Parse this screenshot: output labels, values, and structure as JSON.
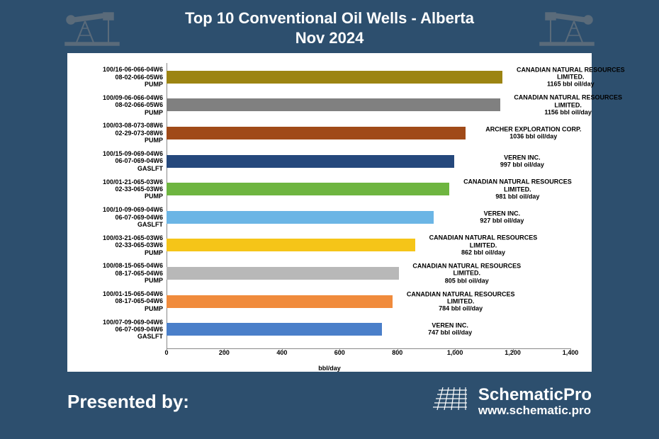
{
  "title_line1": "Top 10 Conventional Oil Wells - Alberta",
  "title_line2": "Nov 2024",
  "chart": {
    "type": "bar-horizontal",
    "x_label": "bbl/day",
    "x_max": 1400,
    "x_ticks": [
      0,
      200,
      400,
      600,
      800,
      1000,
      1200,
      1400
    ],
    "x_tick_labels": [
      "0",
      "200",
      "400",
      "600",
      "800",
      "1,000",
      "1,200",
      "1,400"
    ],
    "background_color": "#ffffff",
    "axis_color": "#888888",
    "label_fontsize": 9,
    "bars": [
      {
        "y1": "100/16-06-066-04W6",
        "y2": "08-02-066-05W6",
        "y3": "PUMP",
        "value": 1165,
        "color": "#9c8412",
        "company": "CANADIAN NATURAL RESOURCES LIMITED.",
        "rate": "1165 bbl oil/day"
      },
      {
        "y1": "100/09-06-066-04W6",
        "y2": "08-02-066-05W6",
        "y3": "PUMP",
        "value": 1156,
        "color": "#808080",
        "company": "CANADIAN NATURAL RESOURCES LIMITED.",
        "rate": "1156 bbl oil/day"
      },
      {
        "y1": "100/03-08-073-08W6",
        "y2": "02-29-073-08W6",
        "y3": "PUMP",
        "value": 1036,
        "color": "#a04a18",
        "company": "ARCHER EXPLORATION CORP.",
        "rate": "1036 bbl oil/day"
      },
      {
        "y1": "100/15-09-069-04W6",
        "y2": "06-07-069-04W6",
        "y3": "GASLFT",
        "value": 997,
        "color": "#25487c",
        "company": "VEREN INC.",
        "rate": "997 bbl oil/day"
      },
      {
        "y1": "100/01-21-065-03W6",
        "y2": "02-33-065-03W6",
        "y3": "PUMP",
        "value": 981,
        "color": "#6eb540",
        "company": "CANADIAN NATURAL RESOURCES LIMITED.",
        "rate": "981 bbl oil/day"
      },
      {
        "y1": "100/10-09-069-04W6",
        "y2": "06-07-069-04W6",
        "y3": "GASLFT",
        "value": 927,
        "color": "#6bb5e5",
        "company": "VEREN INC.",
        "rate": "927 bbl oil/day"
      },
      {
        "y1": "100/03-21-065-03W6",
        "y2": "02-33-065-03W6",
        "y3": "PUMP",
        "value": 862,
        "color": "#f5c518",
        "company": "CANADIAN NATURAL RESOURCES LIMITED.",
        "rate": "862 bbl oil/day"
      },
      {
        "y1": "100/08-15-065-04W6",
        "y2": "08-17-065-04W6",
        "y3": "PUMP",
        "value": 805,
        "color": "#b8b8b8",
        "company": "CANADIAN NATURAL RESOURCES LIMITED.",
        "rate": "805 bbl oil/day"
      },
      {
        "y1": "100/01-15-065-04W6",
        "y2": "08-17-065-04W6",
        "y3": "PUMP",
        "value": 784,
        "color": "#f08b3c",
        "company": "CANADIAN NATURAL RESOURCES LIMITED.",
        "rate": "784 bbl oil/day"
      },
      {
        "y1": "100/07-09-069-04W6",
        "y2": "06-07-069-04W6",
        "y3": "GASLFT",
        "value": 747,
        "color": "#4a7fc9",
        "company": "VEREN INC.",
        "rate": "747 bbl oil/day"
      }
    ]
  },
  "footer": {
    "presented": "Presented by:",
    "brand_name": "SchematicPro",
    "brand_url": "www.schematic.pro"
  },
  "colors": {
    "page_bg": "#2d4f6e",
    "header_text": "#ffffff",
    "pumpjack": "#5a6b7a"
  }
}
